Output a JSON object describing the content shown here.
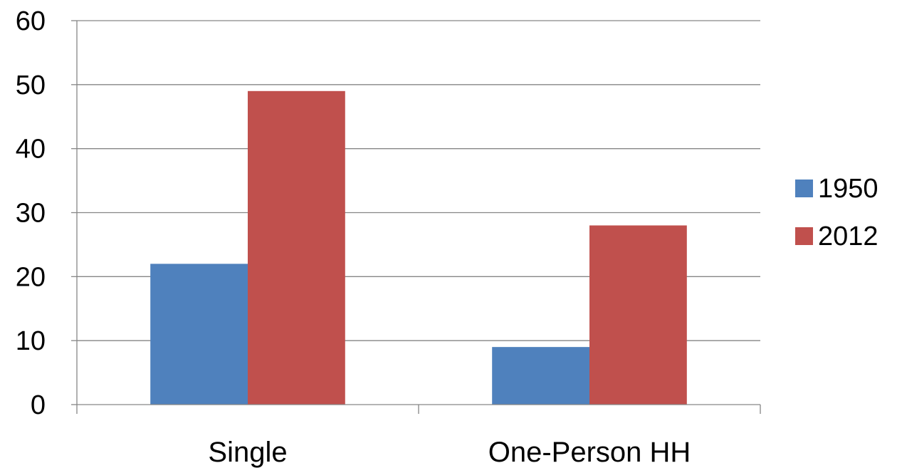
{
  "chart_data": {
    "type": "bar",
    "categories": [
      "Single",
      "One-Person HH"
    ],
    "series": [
      {
        "name": "1950",
        "values": [
          22,
          9
        ],
        "color": "#4F81BD"
      },
      {
        "name": "2012",
        "values": [
          49,
          28
        ],
        "color": "#C0504D"
      }
    ],
    "title": "",
    "xlabel": "",
    "ylabel": "",
    "ylim": [
      0,
      60
    ],
    "yticks": [
      0,
      10,
      20,
      30,
      40,
      50,
      60
    ],
    "grid": true,
    "legend_position": "right"
  }
}
